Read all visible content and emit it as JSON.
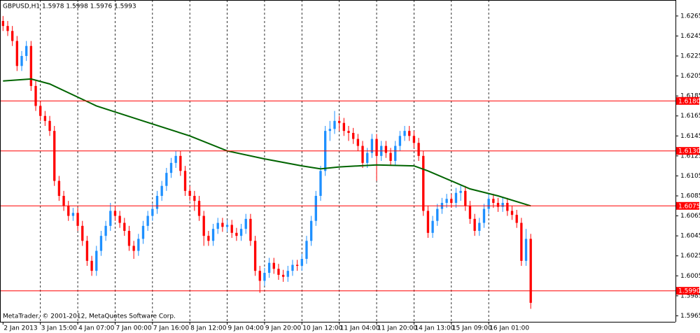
{
  "chart_data": {
    "type": "candlestick",
    "title": "GBPUSD,H1  1.5978 1.5998 1.5976 1.5993",
    "watermark": "MetaTrader, © 2001-2012, MetaQuotes Software Corp.",
    "bull_color": "#1e90ff",
    "bear_color": "#ff0000",
    "level_color": "#ff0000",
    "ma_color": "#006400",
    "grid": true,
    "ylim": [
      1.5959,
      1.6281
    ],
    "yticks": [
      1.6265,
      1.6245,
      1.6225,
      1.6205,
      1.6185,
      1.6165,
      1.6145,
      1.6125,
      1.6105,
      1.6085,
      1.6065,
      1.6045,
      1.6025,
      1.6005,
      1.5985,
      1.5965
    ],
    "xlim": [
      -0.5,
      144
    ],
    "xticks": [
      {
        "value": 0,
        "label": "2 Jan 2013"
      },
      {
        "value": 8,
        "label": "3 Jan 15:00"
      },
      {
        "value": 16,
        "label": "4 Jan 07:00"
      },
      {
        "value": 24,
        "label": "7 Jan 00:00"
      },
      {
        "value": 32,
        "label": "7 Jan 16:00"
      },
      {
        "value": 40,
        "label": "8 Jan 12:00"
      },
      {
        "value": 48,
        "label": "9 Jan 04:00"
      },
      {
        "value": 56,
        "label": "9 Jan 20:00"
      },
      {
        "value": 64,
        "label": "10 Jan 12:00"
      },
      {
        "value": 72,
        "label": "11 Jan 04:00"
      },
      {
        "value": 80,
        "label": "11 Jan 20:00"
      },
      {
        "value": 88,
        "label": "14 Jan 13:00"
      },
      {
        "value": 96,
        "label": "15 Jan 09:00"
      },
      {
        "value": 104,
        "label": "16 Jan 01:00"
      }
    ],
    "levels": [
      {
        "value": 1.618,
        "label": "1.6180"
      },
      {
        "value": 1.613,
        "label": "1.6130"
      },
      1.6075,
      {
        "value": 1.599,
        "label": "1.5990"
      }
    ],
    "ohlc": [
      [
        1.626,
        1.6265,
        1.625,
        1.6255
      ],
      [
        1.6255,
        1.626,
        1.6245,
        1.625
      ],
      [
        1.625,
        1.6255,
        1.6235,
        1.624
      ],
      [
        1.624,
        1.6245,
        1.621,
        1.6215
      ],
      [
        1.6215,
        1.623,
        1.621,
        1.6225
      ],
      [
        1.6225,
        1.624,
        1.622,
        1.6235
      ],
      [
        1.6235,
        1.624,
        1.619,
        1.6195
      ],
      [
        1.6195,
        1.62,
        1.617,
        1.6175
      ],
      [
        1.6175,
        1.618,
        1.616,
        1.6165
      ],
      [
        1.6165,
        1.617,
        1.6155,
        1.616
      ],
      [
        1.616,
        1.6165,
        1.6145,
        1.615
      ],
      [
        1.615,
        1.6155,
        1.6095,
        1.61
      ],
      [
        1.61,
        1.6105,
        1.608,
        1.6085
      ],
      [
        1.6085,
        1.609,
        1.607,
        1.6075
      ],
      [
        1.6075,
        1.608,
        1.606,
        1.6065
      ],
      [
        1.6065,
        1.6073,
        1.606,
        1.6068
      ],
      [
        1.6068,
        1.6073,
        1.605,
        1.6055
      ],
      [
        1.6055,
        1.606,
        1.6035,
        1.604
      ],
      [
        1.604,
        1.6045,
        1.6015,
        1.602
      ],
      [
        1.602,
        1.6025,
        1.6005,
        1.601
      ],
      [
        1.601,
        1.6035,
        1.6005,
        1.603
      ],
      [
        1.603,
        1.605,
        1.6025,
        1.6045
      ],
      [
        1.6045,
        1.606,
        1.604,
        1.6055
      ],
      [
        1.6055,
        1.6078,
        1.605,
        1.607
      ],
      [
        1.607,
        1.6075,
        1.606,
        1.6065
      ],
      [
        1.6065,
        1.607,
        1.6053,
        1.6058
      ],
      [
        1.6058,
        1.6063,
        1.6045,
        1.605
      ],
      [
        1.605,
        1.6055,
        1.603,
        1.6035
      ],
      [
        1.6035,
        1.604,
        1.6022,
        1.603
      ],
      [
        1.603,
        1.6047,
        1.6025,
        1.6042
      ],
      [
        1.6042,
        1.606,
        1.6037,
        1.6055
      ],
      [
        1.6055,
        1.607,
        1.605,
        1.6065
      ],
      [
        1.6065,
        1.6077,
        1.606,
        1.6072
      ],
      [
        1.6072,
        1.609,
        1.6067,
        1.6085
      ],
      [
        1.6085,
        1.61,
        1.608,
        1.6095
      ],
      [
        1.6095,
        1.6113,
        1.609,
        1.6108
      ],
      [
        1.6108,
        1.6123,
        1.6103,
        1.6118
      ],
      [
        1.6118,
        1.613,
        1.6113,
        1.6125
      ],
      [
        1.6125,
        1.613,
        1.6105,
        1.611
      ],
      [
        1.611,
        1.6115,
        1.6085,
        1.609
      ],
      [
        1.609,
        1.6095,
        1.608,
        1.6085
      ],
      [
        1.6085,
        1.609,
        1.607,
        1.608
      ],
      [
        1.608,
        1.6085,
        1.606,
        1.6065
      ],
      [
        1.6065,
        1.607,
        1.6035,
        1.6045
      ],
      [
        1.6045,
        1.605,
        1.6035,
        1.604
      ],
      [
        1.604,
        1.6057,
        1.6035,
        1.6052
      ],
      [
        1.6052,
        1.6063,
        1.6047,
        1.6058
      ],
      [
        1.6058,
        1.6063,
        1.6049,
        1.6054
      ],
      [
        1.6054,
        1.6061,
        1.6049,
        1.6056
      ],
      [
        1.6056,
        1.6061,
        1.6043,
        1.6048
      ],
      [
        1.6048,
        1.6053,
        1.604,
        1.6045
      ],
      [
        1.6045,
        1.6057,
        1.604,
        1.6052
      ],
      [
        1.6052,
        1.6067,
        1.6047,
        1.6062
      ],
      [
        1.6062,
        1.6067,
        1.6035,
        1.604
      ],
      [
        1.604,
        1.6045,
        1.6005,
        1.601
      ],
      [
        1.601,
        1.6015,
        1.5988,
        1.6
      ],
      [
        1.6,
        1.6013,
        1.5995,
        1.6008
      ],
      [
        1.6008,
        1.6023,
        1.6003,
        1.6018
      ],
      [
        1.6018,
        1.6023,
        1.6007,
        1.6012
      ],
      [
        1.6012,
        1.6017,
        1.6001,
        1.6006
      ],
      [
        1.6006,
        1.6011,
        1.5999,
        1.6004
      ],
      [
        1.6004,
        1.6015,
        1.5999,
        1.601
      ],
      [
        1.601,
        1.6021,
        1.6005,
        1.6016
      ],
      [
        1.6016,
        1.6021,
        1.601,
        1.6015
      ],
      [
        1.6015,
        1.6027,
        1.601,
        1.6022
      ],
      [
        1.6022,
        1.6045,
        1.6017,
        1.604
      ],
      [
        1.604,
        1.6065,
        1.6035,
        1.606
      ],
      [
        1.606,
        1.609,
        1.6055,
        1.6085
      ],
      [
        1.6085,
        1.6115,
        1.608,
        1.611
      ],
      [
        1.611,
        1.6155,
        1.6105,
        1.615
      ],
      [
        1.615,
        1.616,
        1.614,
        1.6152
      ],
      [
        1.6152,
        1.617,
        1.6147,
        1.616
      ],
      [
        1.616,
        1.6165,
        1.615,
        1.6158
      ],
      [
        1.6158,
        1.6163,
        1.6145,
        1.615
      ],
      [
        1.615,
        1.6155,
        1.614,
        1.6148
      ],
      [
        1.6148,
        1.6153,
        1.6137,
        1.6142
      ],
      [
        1.6142,
        1.6147,
        1.613,
        1.6135
      ],
      [
        1.6135,
        1.614,
        1.6113,
        1.6118
      ],
      [
        1.6118,
        1.6133,
        1.6113,
        1.6128
      ],
      [
        1.6128,
        1.6147,
        1.6123,
        1.6142
      ],
      [
        1.6142,
        1.6147,
        1.61,
        1.6125
      ],
      [
        1.6125,
        1.614,
        1.612,
        1.6135
      ],
      [
        1.6135,
        1.614,
        1.6123,
        1.6128
      ],
      [
        1.6128,
        1.6133,
        1.6115,
        1.612
      ],
      [
        1.612,
        1.614,
        1.6115,
        1.6135
      ],
      [
        1.6135,
        1.615,
        1.613,
        1.6145
      ],
      [
        1.6145,
        1.6155,
        1.614,
        1.615
      ],
      [
        1.615,
        1.6155,
        1.614,
        1.6145
      ],
      [
        1.6145,
        1.615,
        1.6133,
        1.6138
      ],
      [
        1.6138,
        1.6143,
        1.612,
        1.6125
      ],
      [
        1.6125,
        1.613,
        1.6065,
        1.607
      ],
      [
        1.607,
        1.6075,
        1.6043,
        1.6048
      ],
      [
        1.6048,
        1.6065,
        1.6043,
        1.606
      ],
      [
        1.606,
        1.6077,
        1.6055,
        1.6072
      ],
      [
        1.6072,
        1.6083,
        1.6067,
        1.6078
      ],
      [
        1.6078,
        1.6087,
        1.6073,
        1.6082
      ],
      [
        1.6082,
        1.6087,
        1.6073,
        1.6078
      ],
      [
        1.6078,
        1.6093,
        1.6073,
        1.6088
      ],
      [
        1.6088,
        1.6095,
        1.608,
        1.609
      ],
      [
        1.609,
        1.6095,
        1.607,
        1.6075
      ],
      [
        1.6075,
        1.608,
        1.6057,
        1.6062
      ],
      [
        1.6062,
        1.6067,
        1.6045,
        1.605
      ],
      [
        1.605,
        1.6063,
        1.6045,
        1.6058
      ],
      [
        1.6058,
        1.6077,
        1.6053,
        1.6072
      ],
      [
        1.6072,
        1.6087,
        1.6067,
        1.6082
      ],
      [
        1.6082,
        1.6087,
        1.6073,
        1.6078
      ],
      [
        1.6078,
        1.6083,
        1.6069,
        1.6074
      ],
      [
        1.6074,
        1.6083,
        1.6069,
        1.6078
      ],
      [
        1.6078,
        1.6083,
        1.6065,
        1.607
      ],
      [
        1.607,
        1.6075,
        1.6061,
        1.6066
      ],
      [
        1.6066,
        1.6071,
        1.6053,
        1.6058
      ],
      [
        1.6058,
        1.6063,
        1.6015,
        1.602
      ],
      [
        1.602,
        1.6052,
        1.6015,
        1.6042
      ],
      [
        1.6042,
        1.6047,
        1.5972,
        1.5978
      ]
    ],
    "ma": {
      "x": [
        0,
        6,
        10,
        20,
        30,
        40,
        48,
        56,
        64,
        68,
        72,
        80,
        88,
        91,
        96,
        100,
        106,
        113
      ],
      "values": [
        1.62,
        1.6202,
        1.6197,
        1.6175,
        1.616,
        1.6145,
        1.613,
        1.6122,
        1.6115,
        1.6112,
        1.6114,
        1.6116,
        1.6115,
        1.611,
        1.61,
        1.6092,
        1.6085,
        1.6075
      ]
    }
  }
}
